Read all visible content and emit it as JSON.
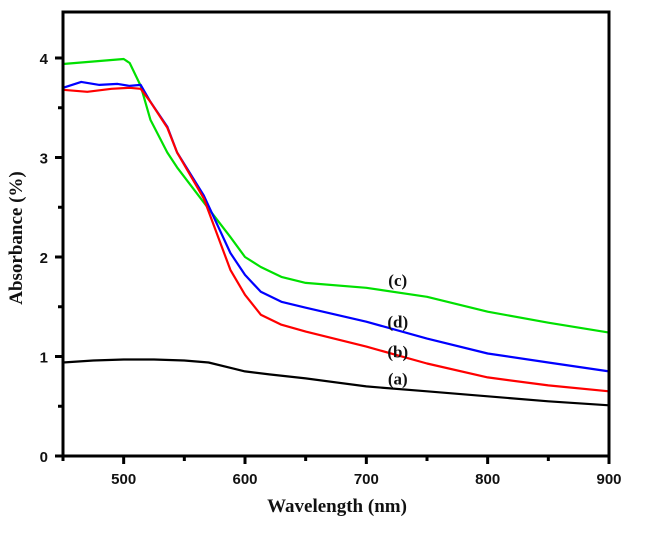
{
  "chart_data": {
    "type": "line",
    "title": "",
    "xlabel": "Wavelength (nm)",
    "ylabel": "Absorbance (%)",
    "xlim": [
      450,
      900
    ],
    "ylim": [
      0,
      4.5
    ],
    "x_ticks": [
      500,
      600,
      700,
      800,
      900
    ],
    "x_minor_ticks": [
      450,
      550,
      650,
      750,
      850
    ],
    "y_ticks": [
      0,
      1,
      2,
      3,
      4
    ],
    "y_minor_ticks": [
      0.5,
      1.5,
      2.5,
      3.5
    ],
    "grid": false,
    "legend": "none (inline curve labels)",
    "series": [
      {
        "name": "(a)",
        "color": "#000000",
        "label_at": [
          730,
          0.78
        ],
        "x": [
          450,
          475,
          500,
          525,
          550,
          570,
          590,
          600,
          620,
          650,
          700,
          750,
          800,
          850,
          900
        ],
        "y": [
          0.94,
          0.96,
          0.97,
          0.97,
          0.96,
          0.94,
          0.88,
          0.85,
          0.82,
          0.78,
          0.7,
          0.65,
          0.6,
          0.55,
          0.51
        ]
      },
      {
        "name": "(b)",
        "color": "#ff0000",
        "label_at": [
          730,
          1.05
        ],
        "x": [
          450,
          470,
          490,
          505,
          514,
          522,
          536,
          544,
          566,
          588,
          600,
          613,
          630,
          650,
          700,
          750,
          800,
          850,
          900
        ],
        "y": [
          3.68,
          3.66,
          3.69,
          3.7,
          3.69,
          3.56,
          3.3,
          3.05,
          2.59,
          1.87,
          1.62,
          1.42,
          1.32,
          1.25,
          1.1,
          0.93,
          0.79,
          0.71,
          0.65
        ]
      },
      {
        "name": "(c)",
        "color": "#00e000",
        "label_at": [
          730,
          1.77
        ],
        "x": [
          450,
          470,
          490,
          500,
          505,
          514,
          522,
          536,
          544,
          566,
          588,
          600,
          613,
          630,
          650,
          700,
          750,
          800,
          850,
          900
        ],
        "y": [
          3.94,
          3.96,
          3.98,
          3.99,
          3.95,
          3.72,
          3.38,
          3.05,
          2.9,
          2.55,
          2.2,
          2.0,
          1.9,
          1.8,
          1.74,
          1.69,
          1.6,
          1.45,
          1.34,
          1.24
        ]
      },
      {
        "name": "(d)",
        "color": "#0000ff",
        "label_at": [
          730,
          1.35
        ],
        "x": [
          450,
          465,
          480,
          495,
          505,
          514,
          522,
          536,
          544,
          566,
          588,
          600,
          613,
          630,
          650,
          700,
          750,
          800,
          850,
          900
        ],
        "y": [
          3.7,
          3.76,
          3.73,
          3.74,
          3.72,
          3.73,
          3.56,
          3.31,
          3.05,
          2.62,
          2.04,
          1.82,
          1.65,
          1.55,
          1.49,
          1.35,
          1.18,
          1.03,
          0.94,
          0.85
        ]
      }
    ]
  }
}
